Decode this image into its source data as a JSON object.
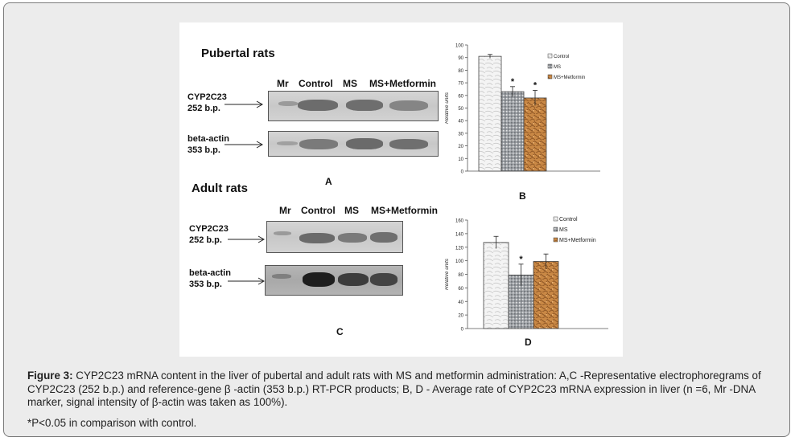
{
  "panels": {
    "a": {
      "title": "Pubertal rats",
      "lanes": [
        "Mr",
        "Control",
        "MS",
        "MS+Metformin"
      ],
      "gene1_name": "CYP2C23",
      "gene1_size": "252 b.p.",
      "gene2_name": "beta-actin",
      "gene2_size": "353 b.p.",
      "letter": "A"
    },
    "c": {
      "title": "Adult rats",
      "lanes": [
        "Mr",
        "Control",
        "MS",
        "MS+Metformin"
      ],
      "gene1_name": "CYP2C23",
      "gene1_size": "252 b.p.",
      "gene2_name": "beta-actin",
      "gene2_size": "353 b.p.",
      "letter": "C"
    }
  },
  "chart_data": [
    {
      "type": "bar",
      "panel": "B",
      "categories": [
        "Control",
        "MS",
        "MS+Metformin"
      ],
      "values": [
        91,
        63,
        58
      ],
      "errors": [
        1.5,
        4,
        6
      ],
      "significance": [
        "",
        "*",
        "*"
      ],
      "legend": [
        "Control",
        "MS",
        "MS+Metformin"
      ],
      "legend_position": "top-right",
      "ylabel": "Relative units",
      "ylim": [
        0,
        100
      ],
      "yticks": [
        0,
        10,
        20,
        30,
        40,
        50,
        60,
        70,
        80,
        90,
        100
      ],
      "ytick_labels": [
        "0",
        "10",
        "20",
        "30",
        "40",
        "50",
        "60",
        "70",
        "80",
        "90",
        "100"
      ],
      "grid": false,
      "letter": "B"
    },
    {
      "type": "bar",
      "panel": "D",
      "categories": [
        "Control",
        "MS",
        "MS+Metformin"
      ],
      "values": [
        127,
        79,
        99
      ],
      "errors": [
        9,
        16,
        11
      ],
      "significance": [
        "",
        "*",
        ""
      ],
      "legend": [
        "Control",
        "MS",
        "MS+Metformin"
      ],
      "legend_position": "top-right",
      "ylabel": "Relative units",
      "ylim": [
        0,
        160
      ],
      "yticks": [
        0,
        20,
        40,
        60,
        80,
        100,
        120,
        140,
        160
      ],
      "ytick_labels": [
        "0",
        "20",
        "40",
        "60",
        "80",
        "100",
        "120",
        "140",
        "160"
      ],
      "grid": false,
      "letter": "D"
    }
  ],
  "caption": {
    "label": "Figure 3:",
    "text": " CYP2C23 mRNA content in the liver of pubertal and adult rats with MS and metformin administration: A,C -Representative electrophoregrams of CYP2C23 (252 b.p.) and reference-gene β -actin (353 b.p.) RT-PCR products; B, D - Average rate of CYP2C23 mRNA expression in liver (n =6, Mr -DNA marker, signal intensity of β-actin was taken as 100%).",
    "footnote": "*P<0.05 in comparison with control."
  }
}
